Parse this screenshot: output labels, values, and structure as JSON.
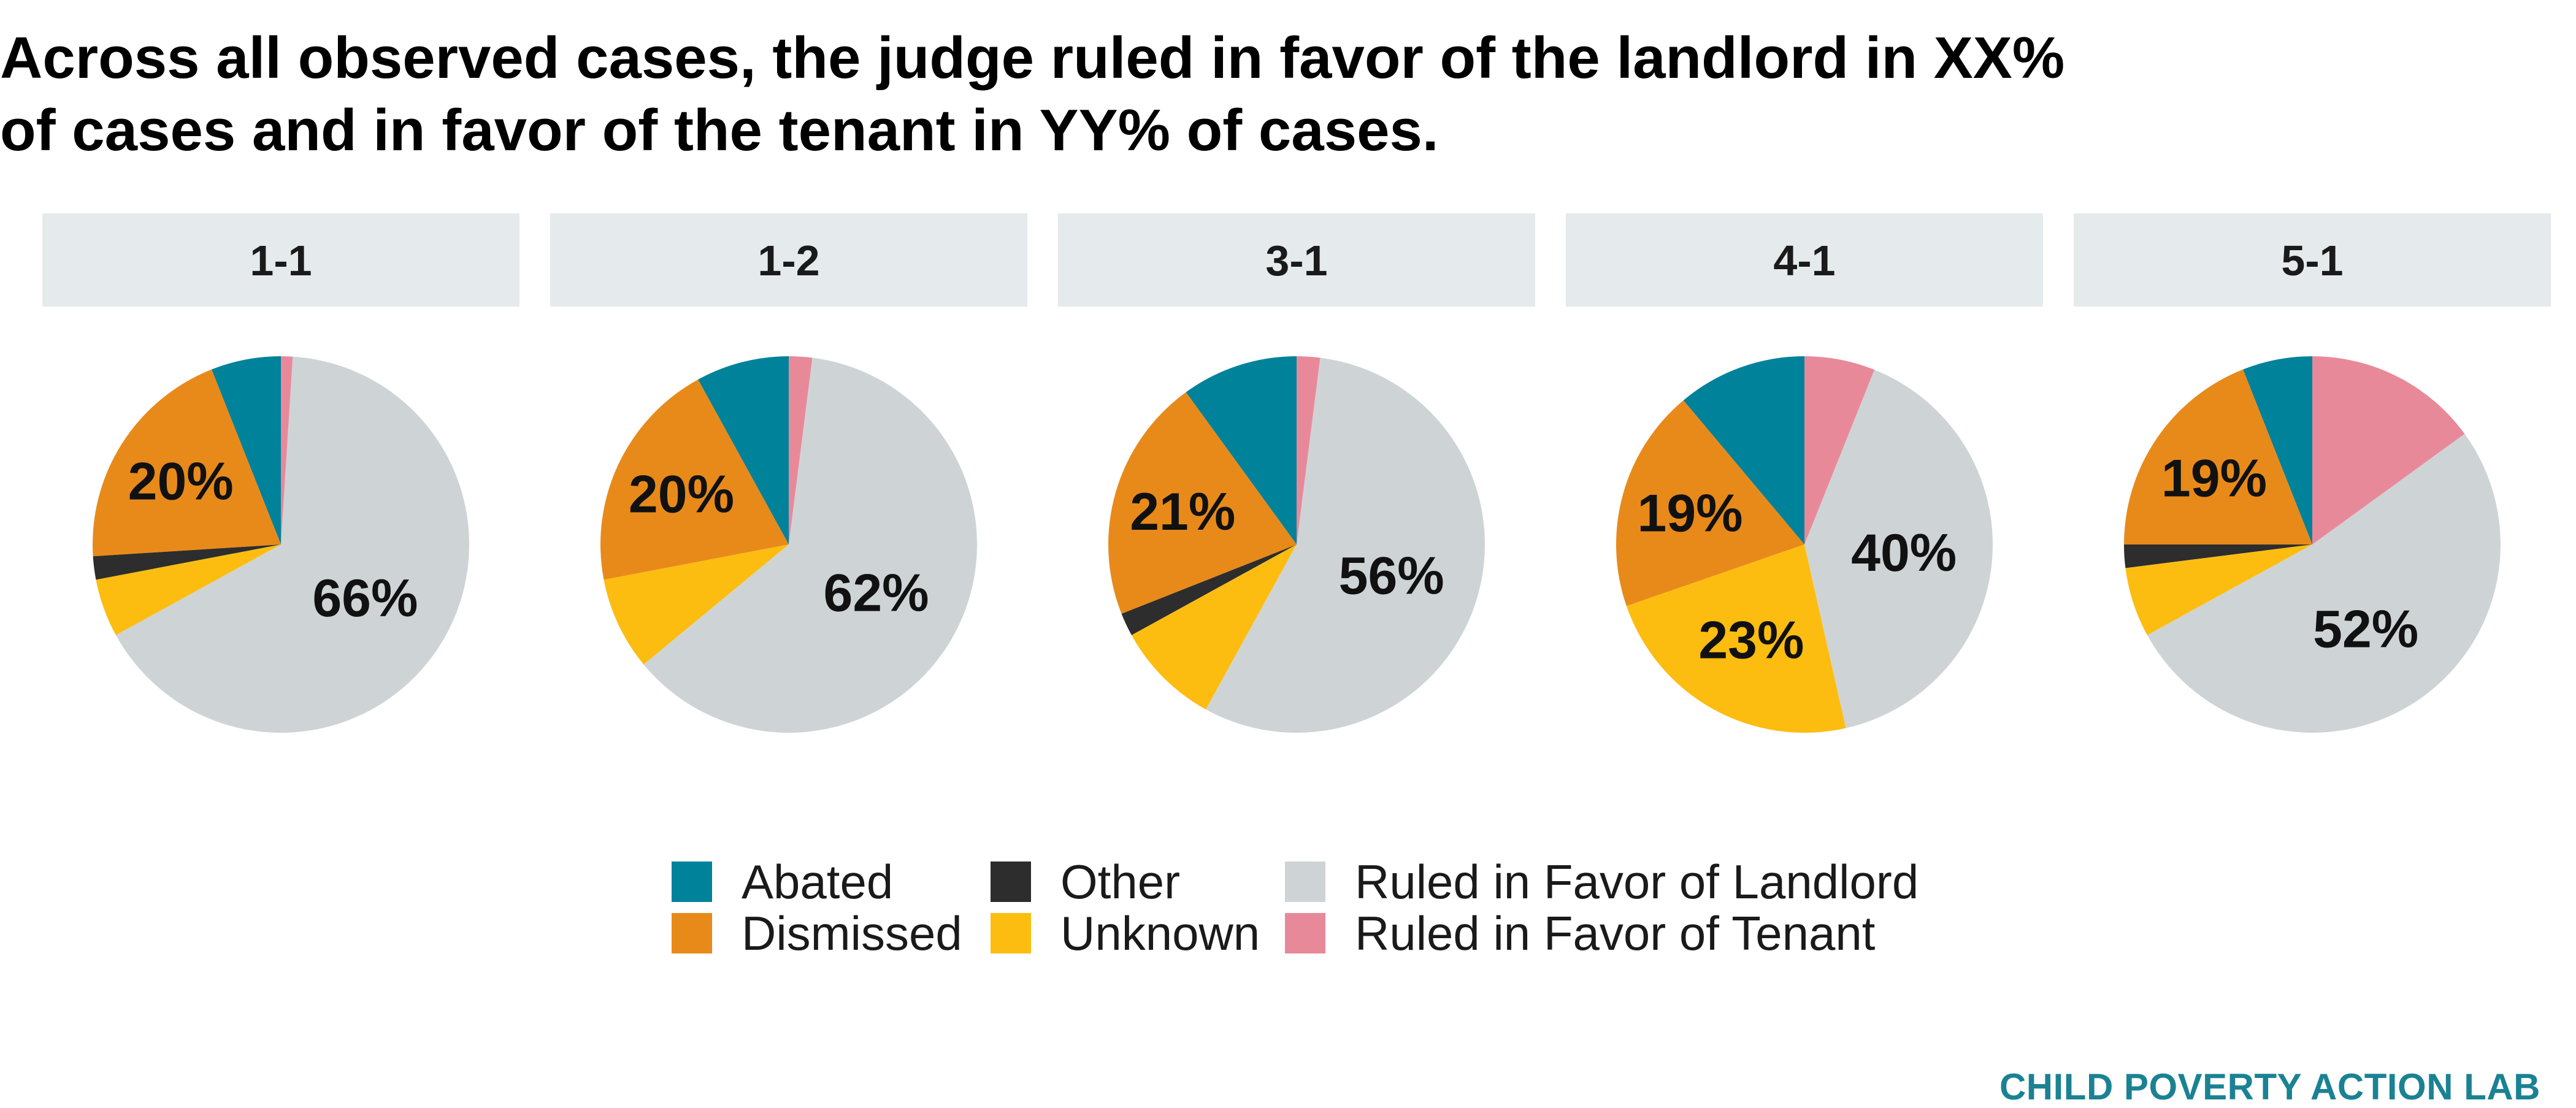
{
  "title": {
    "line1": "Across all observed cases, the judge ruled in favor of the landlord in XX%",
    "line2": "of cases and in favor of the tenant in YY% of cases."
  },
  "chart_data": {
    "type": "pie",
    "facet_count": 5,
    "categories": [
      "Abated",
      "Dismissed",
      "Other",
      "Unknown",
      "Ruled in Favor of Landlord",
      "Ruled in Favor of Tenant"
    ],
    "colors": {
      "Abated": "#00829b",
      "Dismissed": "#e88a1a",
      "Other": "#2d2d2d",
      "Unknown": "#fdbd10",
      "Ruled in Favor of Landlord": "#ced4d6",
      "Ruled in Favor of Tenant": "#e8899a"
    },
    "facets": [
      {
        "name": "1-1",
        "values": {
          "Abated": 6,
          "Dismissed": 20,
          "Other": 2,
          "Unknown": 5,
          "Ruled in Favor of Landlord": 66,
          "Ruled in Favor of Tenant": 1
        },
        "labels": {
          "Dismissed": "20%",
          "Ruled in Favor of Landlord": "66%"
        }
      },
      {
        "name": "1-2",
        "values": {
          "Abated": 8,
          "Dismissed": 20,
          "Other": 0,
          "Unknown": 8,
          "Ruled in Favor of Landlord": 62,
          "Ruled in Favor of Tenant": 2
        },
        "labels": {
          "Dismissed": "20%",
          "Ruled in Favor of Landlord": "62%"
        }
      },
      {
        "name": "3-1",
        "values": {
          "Abated": 10,
          "Dismissed": 21,
          "Other": 2,
          "Unknown": 9,
          "Ruled in Favor of Landlord": 56,
          "Ruled in Favor of Tenant": 2
        },
        "labels": {
          "Dismissed": "21%",
          "Ruled in Favor of Landlord": "56%"
        }
      },
      {
        "name": "4-1",
        "values": {
          "Abated": 11,
          "Dismissed": 19,
          "Other": 0,
          "Unknown": 23,
          "Ruled in Favor of Landlord": 40,
          "Ruled in Favor of Tenant": 6
        },
        "labels": {
          "Dismissed": "19%",
          "Unknown": "23%",
          "Ruled in Favor of Landlord": "40%"
        }
      },
      {
        "name": "5-1",
        "values": {
          "Abated": 6,
          "Dismissed": 19,
          "Other": 2,
          "Unknown": 6,
          "Ruled in Favor of Landlord": 52,
          "Ruled in Favor of Tenant": 15
        },
        "labels": {
          "Dismissed": "19%",
          "Ruled in Favor of Landlord": "52%"
        }
      }
    ],
    "legend_position": "bottom"
  },
  "legend": {
    "items": [
      {
        "label": "Abated",
        "key": "Abated"
      },
      {
        "label": "Dismissed",
        "key": "Dismissed"
      },
      {
        "label": "Other",
        "key": "Other"
      },
      {
        "label": "Unknown",
        "key": "Unknown"
      },
      {
        "label": "Ruled in Favor of Landlord",
        "key": "Ruled in Favor of Landlord"
      },
      {
        "label": "Ruled in Favor of Tenant",
        "key": "Ruled in Favor of Tenant"
      }
    ]
  },
  "credit": "CHILD POVERTY ACTION LAB"
}
